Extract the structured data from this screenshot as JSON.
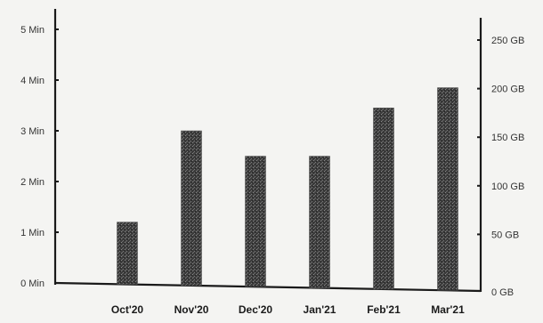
{
  "chart_data": {
    "type": "bar",
    "title": "",
    "xlabel": "",
    "ylabel": "",
    "categories": [
      "Oct'20",
      "Nov'20",
      "Dec'20",
      "Jan'21",
      "Feb'21",
      "Mar'21"
    ],
    "series": [
      {
        "values": [
          1.2,
          3.0,
          2.5,
          2.5,
          3.45,
          3.85
        ]
      }
    ],
    "y_left": {
      "range": [
        0,
        5
      ],
      "ticks": [
        0,
        1,
        2,
        3,
        4,
        5
      ],
      "tick_labels": [
        "0 Min",
        "1 Min",
        "2 Min",
        "3 Min",
        "4 Min",
        "5 Min"
      ]
    },
    "y_right": {
      "range": [
        0,
        250
      ],
      "ticks": [
        0,
        50,
        100,
        150,
        200,
        250
      ],
      "tick_labels": [
        "0 GB",
        "50 GB",
        "100 GB",
        "150 GB",
        "200 GB",
        "250 GB"
      ]
    },
    "grid": false,
    "legend": "none",
    "bar_color": "#4a4a4a"
  }
}
